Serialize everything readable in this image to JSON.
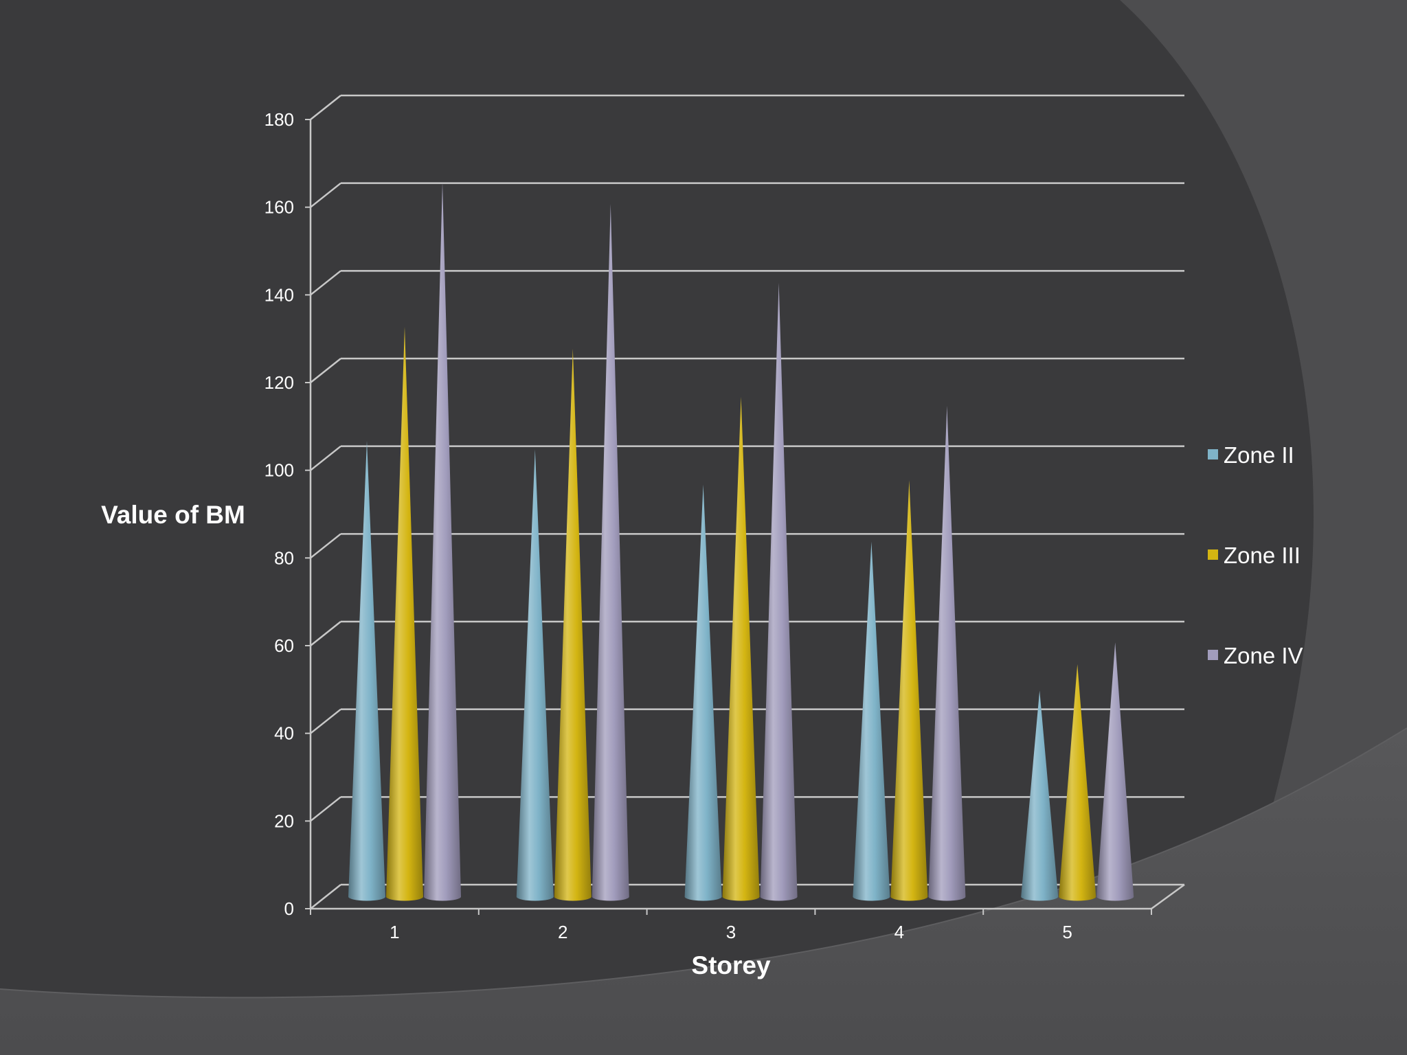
{
  "chart_data": {
    "type": "bar",
    "bar_shape": "cone",
    "three_d": true,
    "categories": [
      "1",
      "2",
      "3",
      "4",
      "5"
    ],
    "series": [
      {
        "name": "Zone II",
        "color": "#7fb3c8",
        "values": [
          104,
          102,
          94,
          81,
          47
        ]
      },
      {
        "name": "Zone III",
        "color": "#d4b512",
        "values": [
          130,
          125,
          114,
          95,
          53
        ]
      },
      {
        "name": "Zone IV",
        "color": "#a19cbc",
        "values": [
          163,
          158,
          140,
          112,
          58
        ]
      }
    ],
    "yticks": [
      "0",
      "20",
      "40",
      "60",
      "80",
      "100",
      "120",
      "140",
      "160",
      "180"
    ],
    "ylim": [
      0,
      180
    ],
    "xlabel": "Storey",
    "ylabel": "Value of BM",
    "grid": true,
    "legend_position": "right"
  }
}
